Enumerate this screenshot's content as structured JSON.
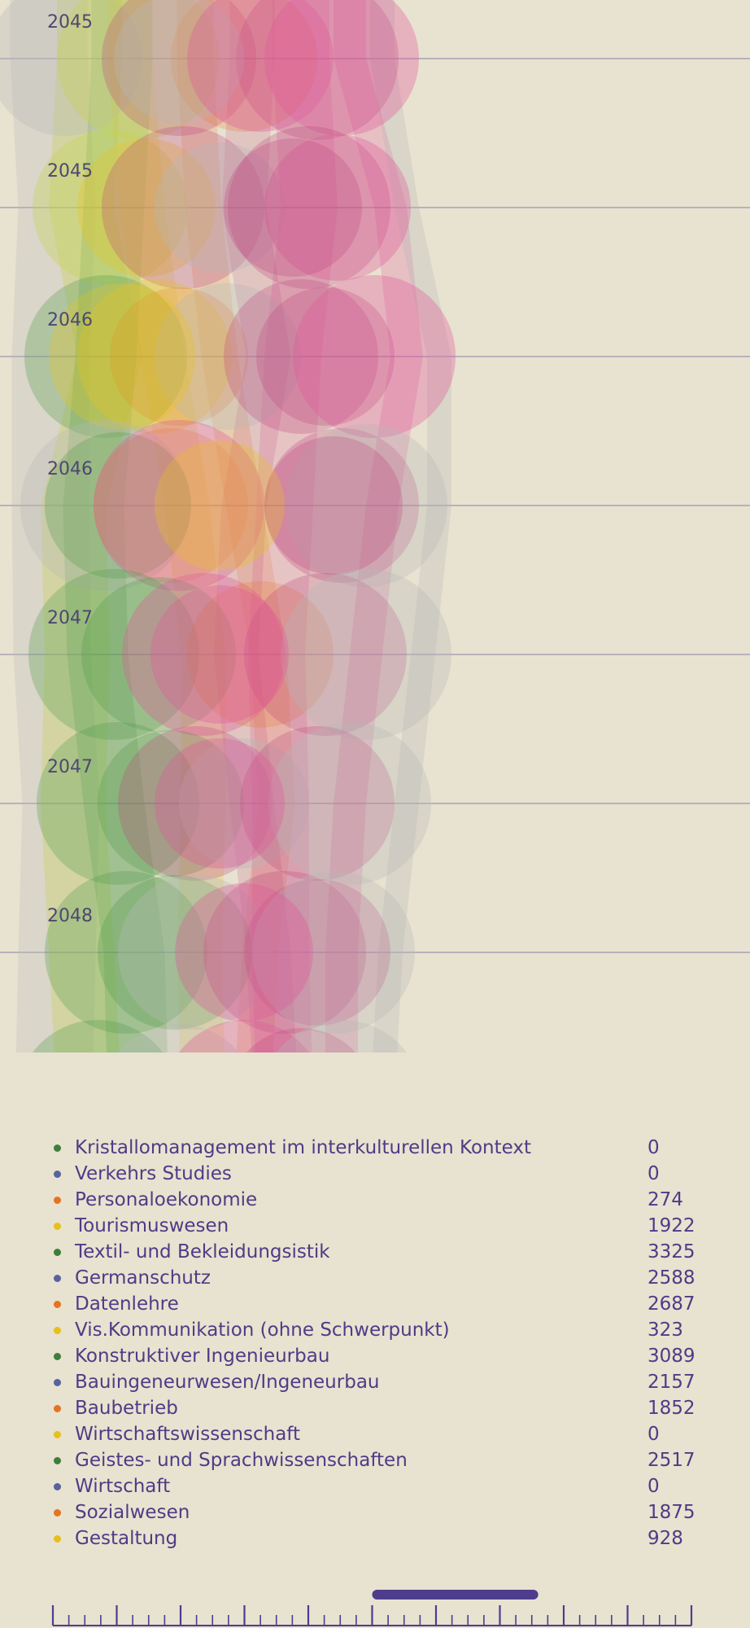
{
  "chart_data": {
    "type": "scatter",
    "rows": [
      "2045",
      "2045",
      "2046",
      "2046",
      "2047",
      "2047",
      "2048"
    ],
    "palette": {
      "green": "#4f9a4a",
      "blue": "#5668a8",
      "orange": "#e8731f",
      "yellow": "#e7c21c",
      "pink": "#e05a9a",
      "magenta": "#c0457e",
      "grey": "#b7b7b7",
      "lime": "#c3d24a"
    },
    "legend": [
      {
        "name": "Kristallomanagement im interkulturellen Kontext",
        "value": "0",
        "color": "#3f7e3a"
      },
      {
        "name": "Verkehrs Studies",
        "value": "0",
        "color": "#56639e"
      },
      {
        "name": "Personaloekonomie",
        "value": "274",
        "color": "#e5731f"
      },
      {
        "name": "Tourismuswesen",
        "value": "1922",
        "color": "#e6c01c"
      },
      {
        "name": "Textil- und Bekleidungsistik",
        "value": "3325",
        "color": "#3f7e3a"
      },
      {
        "name": "Germanschutz",
        "value": "2588",
        "color": "#56639e"
      },
      {
        "name": "Datenlehre",
        "value": "2687",
        "color": "#e5731f"
      },
      {
        "name": "Vis.Kommunikation (ohne Schwerpunkt)",
        "value": "323",
        "color": "#e6c01c"
      },
      {
        "name": "Konstruktiver Ingenieurbau",
        "value": "3089",
        "color": "#3f7e3a"
      },
      {
        "name": "Bauingeneurwesen/Ingeneurbau",
        "value": "2157",
        "color": "#56639e"
      },
      {
        "name": "Baubetrieb",
        "value": "1852",
        "color": "#e5731f"
      },
      {
        "name": "Wirtschaftswissenschaft",
        "value": "0",
        "color": "#e6c01c"
      },
      {
        "name": "Geistes- und Sprachwissenschaften",
        "value": "2517",
        "color": "#3f7e3a"
      },
      {
        "name": "Wirtschaft",
        "value": "0",
        "color": "#56639e"
      },
      {
        "name": "Sozialwesen",
        "value": "1875",
        "color": "#e5731f"
      },
      {
        "name": "Gestaltung",
        "value": "928",
        "color": "#e6c01c"
      }
    ],
    "timeline": {
      "tick_count": 40,
      "major_every": 4,
      "selection": [
        0.5,
        0.76
      ],
      "color": "#4d3d8c"
    }
  }
}
